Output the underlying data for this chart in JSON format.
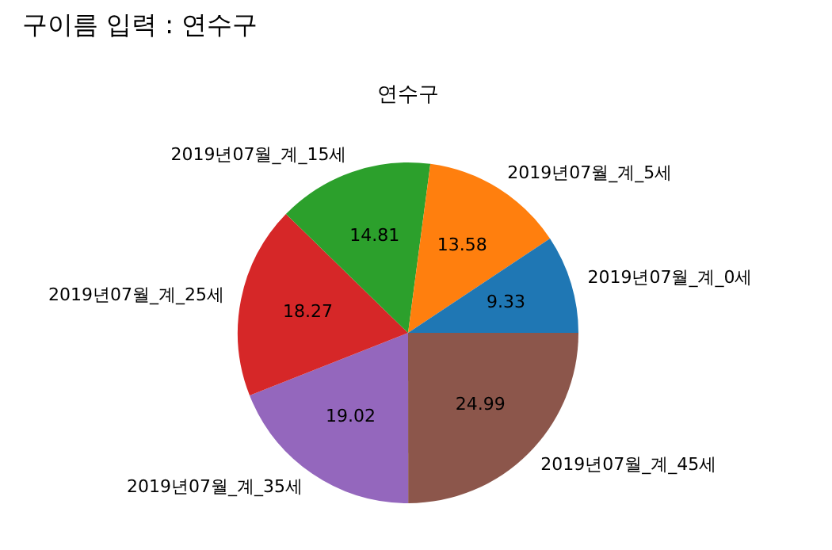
{
  "chart_data": {
    "type": "pie",
    "title": "연수구",
    "annotations": [
      "구이름 입력 : 연수구"
    ],
    "categories": [
      "2019년07월_계_0세",
      "2019년07월_계_5세",
      "2019년07월_계_15세",
      "2019년07월_계_25세",
      "2019년07월_계_35세",
      "2019년07월_계_45세"
    ],
    "values": [
      9.33,
      13.58,
      14.81,
      18.27,
      19.02,
      24.99
    ],
    "colors": [
      "#1f77b4",
      "#ff7f0e",
      "#2ca02c",
      "#d62728",
      "#9467bd",
      "#8c564b"
    ],
    "data_labels": true,
    "legend": false
  }
}
